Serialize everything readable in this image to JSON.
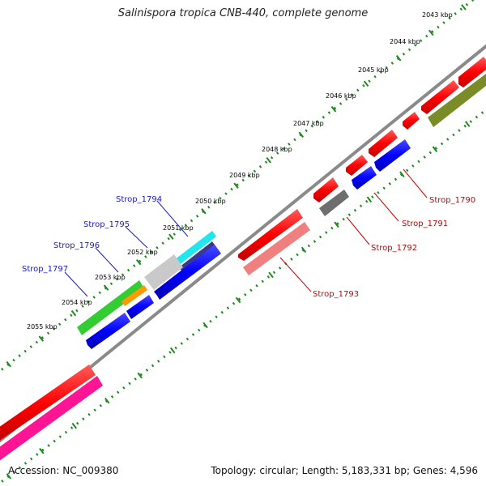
{
  "title": "Salinispora tropica CNB-440, complete genome",
  "footer": {
    "accession": "Accession: NC_009380",
    "summary": "Topology: circular; Length: 5,183,331 bp; Genes: 4,596"
  },
  "colors": {
    "backbone": "#808080",
    "tick": "#1e8a1e",
    "cds_forward": "#ff0000",
    "cds_reverse": "#0000ff",
    "label_blue": "#1a1acc",
    "label_red": "#cc0000"
  },
  "kbp_ticks": [
    "2043 kbp",
    "2044 kbp",
    "2045 kbp",
    "2046 kbp",
    "2047 kbp",
    "2048 kbp",
    "2049 kbp",
    "2050 kbp",
    "2051 kbp",
    "2052 kbp",
    "2053 kbp",
    "2054 kbp",
    "2055 kbp"
  ],
  "gene_labels": {
    "blue": [
      "Strop_1794",
      "Strop_1795",
      "Strop_1796",
      "Strop_1797"
    ],
    "red": [
      "Strop_1790",
      "Strop_1791",
      "Strop_1792",
      "Strop_1793"
    ]
  }
}
